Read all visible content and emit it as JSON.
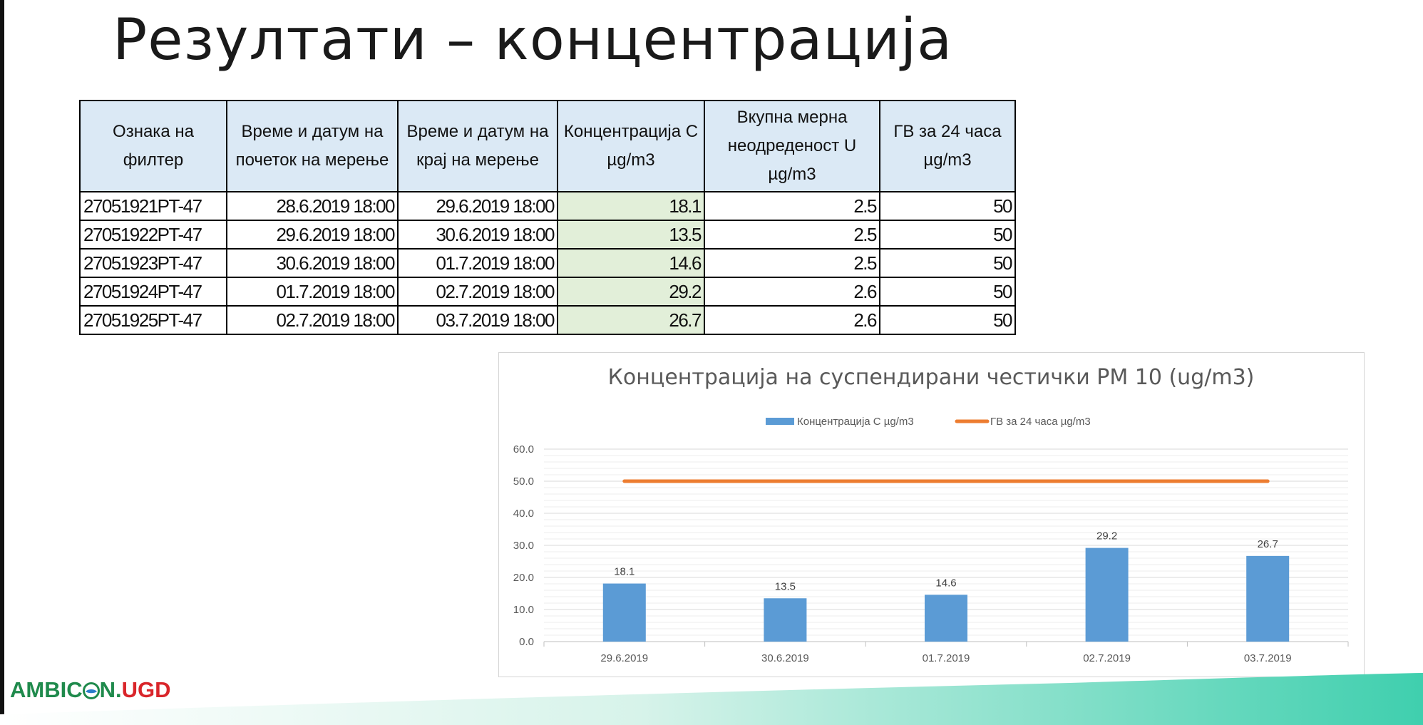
{
  "slide": {
    "title": "Резултати – концентрација"
  },
  "table": {
    "headers": [
      "Ознака на филтер",
      "Време и датум на почеток на мерење",
      "Време и датум на крај на мерење",
      "Концентрација C µg/m3",
      "Вкупна мерна неодреденост U µg/m3",
      "ГВ за 24 часа µg/m3"
    ],
    "rows": [
      [
        "27051921PT-47",
        "28.6.2019 18:00",
        "29.6.2019 18:00",
        "18.1",
        "2.5",
        "50"
      ],
      [
        "27051922PT-47",
        "29.6.2019 18:00",
        "30.6.2019 18:00",
        "13.5",
        "2.5",
        "50"
      ],
      [
        "27051923PT-47",
        "30.6.2019 18:00",
        "01.7.2019 18:00",
        "14.6",
        "2.5",
        "50"
      ],
      [
        "27051924PT-47",
        "01.7.2019 18:00",
        "02.7.2019 18:00",
        "29.2",
        "2.6",
        "50"
      ],
      [
        "27051925PT-47",
        "02.7.2019 18:00",
        "03.7.2019 18:00",
        "26.7",
        "2.6",
        "50"
      ]
    ],
    "colors": {
      "header_bg": "#dbe9f5",
      "conc_bg": "#e2efd9"
    }
  },
  "chart_data": {
    "type": "bar",
    "title": "Концентрација на суспендирани честички PM 10 (ug/m3)",
    "categories": [
      "29.6.2019",
      "30.6.2019",
      "01.7.2019",
      "02.7.2019",
      "03.7.2019"
    ],
    "series": [
      {
        "name": "Концентрација C µg/m3",
        "type": "bar",
        "values": [
          18.1,
          13.5,
          14.6,
          29.2,
          26.7
        ],
        "color": "#5b9bd5"
      },
      {
        "name": "ГВ за 24 часа µg/m3",
        "type": "line",
        "values": [
          50,
          50,
          50,
          50,
          50
        ],
        "color": "#ed7d31"
      }
    ],
    "data_labels": [
      "18.1",
      "13.5",
      "14.6",
      "29.2",
      "26.7"
    ],
    "yticks": [
      "0.0",
      "10.0",
      "20.0",
      "30.0",
      "40.0",
      "50.0",
      "60.0"
    ],
    "ylim": [
      0,
      60
    ],
    "grid": true,
    "legend_position": "top"
  },
  "logo": {
    "text_green_1": "AMBIC",
    "text_green_2": "N.",
    "text_red": "UGD",
    "colors": {
      "green": "#1f8a4c",
      "red": "#d9252a"
    }
  }
}
